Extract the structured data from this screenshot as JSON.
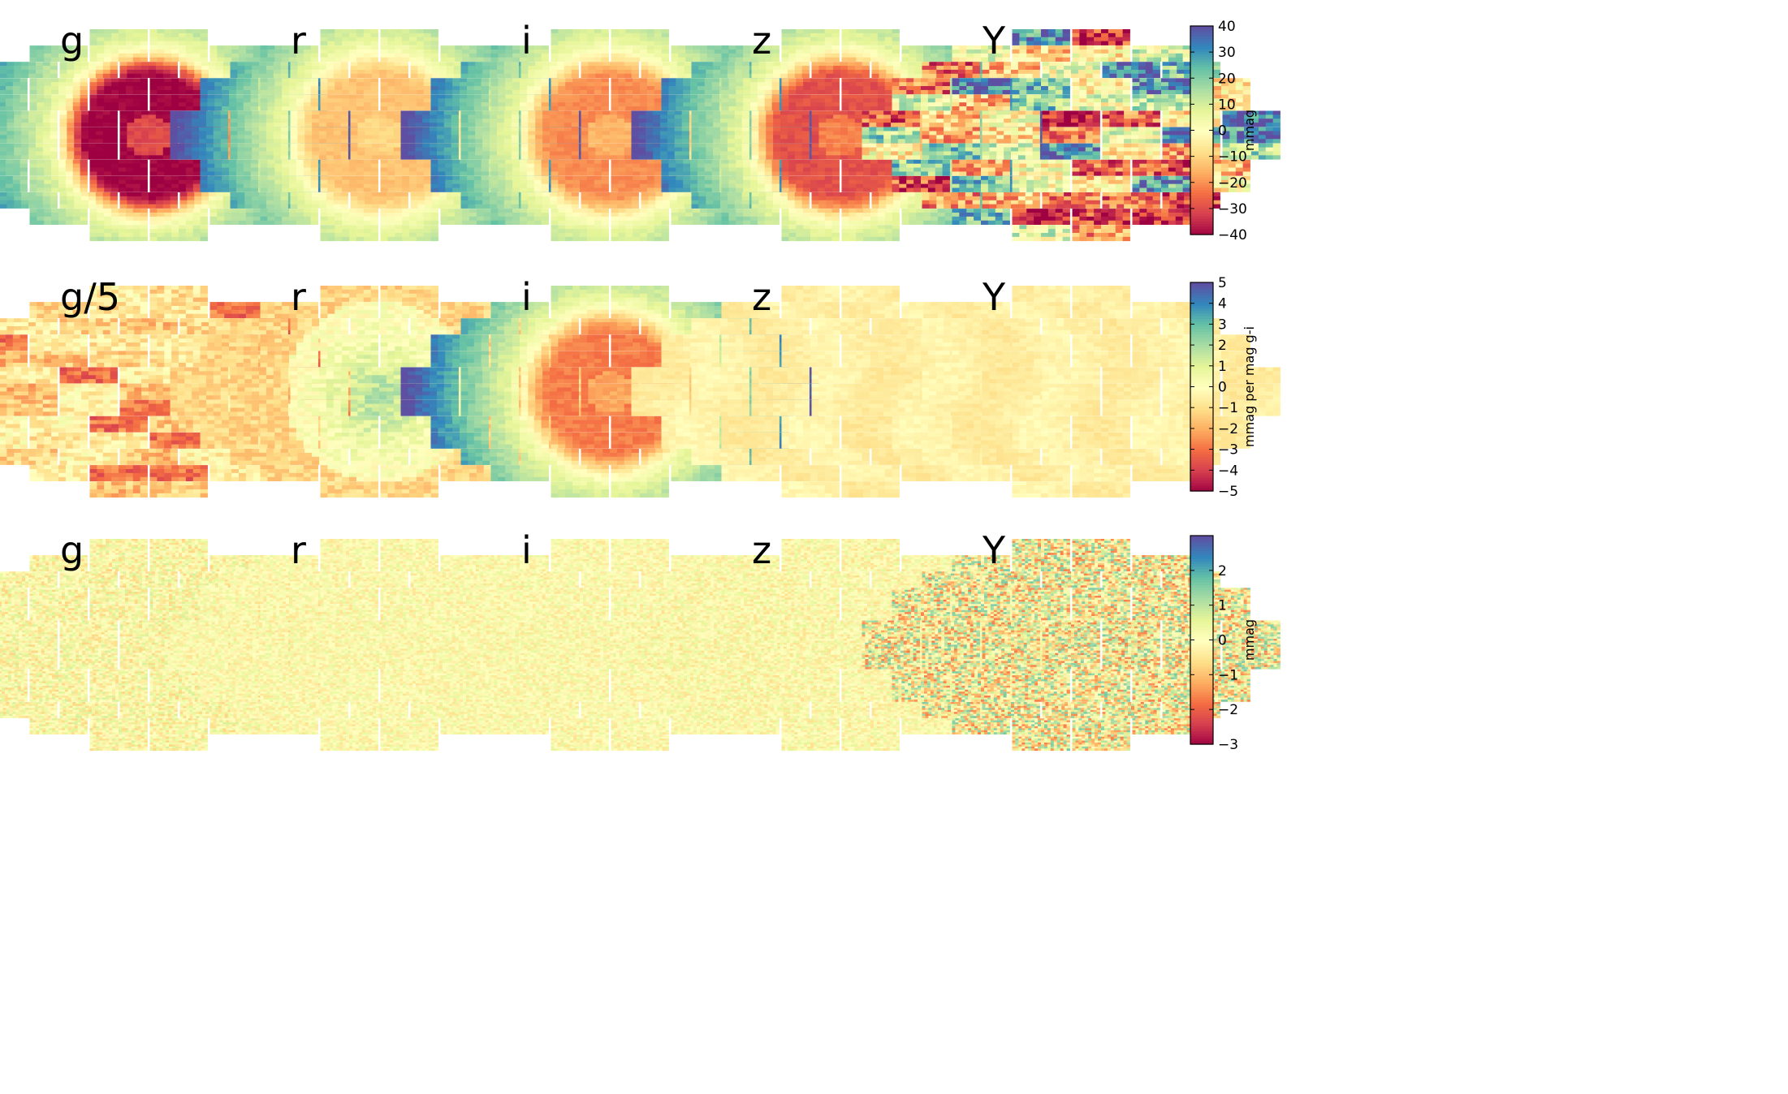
{
  "chart_data": {
    "type": "heatmap",
    "description_units": "focal-plane CCD maps; colour encodes value",
    "colormap": "Spectral",
    "rows": [
      {
        "id": "row1",
        "panels": [
          {
            "label": "g",
            "pattern": "ring",
            "strength": -1.0,
            "noise": 0.06
          },
          {
            "label": "r",
            "pattern": "ring",
            "strength": -0.32,
            "noise": 0.05
          },
          {
            "label": "i",
            "pattern": "ring",
            "strength": -0.5,
            "noise": 0.05
          },
          {
            "label": "z",
            "pattern": "ring",
            "strength": -0.72,
            "noise": 0.06
          },
          {
            "label": "Y",
            "pattern": "patchy",
            "strength": 0.9,
            "noise": 0.35
          }
        ],
        "colorbar": {
          "label": "mmag",
          "min": -40,
          "max": 40,
          "ticks": [
            "−40",
            "−30",
            "−20",
            "−10",
            "0",
            "10",
            "20",
            "30",
            "40"
          ]
        }
      },
      {
        "id": "row2",
        "panels": [
          {
            "label": "g/5",
            "pattern": "warm",
            "strength": -0.3,
            "noise": 0.18
          },
          {
            "label": "r",
            "pattern": "blob",
            "strength": 0.35,
            "noise": 0.12
          },
          {
            "label": "i",
            "pattern": "ring",
            "strength": -0.55,
            "noise": 0.06
          },
          {
            "label": "z",
            "pattern": "flat",
            "strength": -0.1,
            "noise": 0.05
          },
          {
            "label": "Y",
            "pattern": "flat",
            "strength": -0.1,
            "noise": 0.05
          }
        ],
        "colorbar": {
          "label": "mmag per mag g-i",
          "min": -5,
          "max": 5,
          "ticks": [
            "−5",
            "−4",
            "−3",
            "−2",
            "−1",
            "0",
            "1",
            "2",
            "3",
            "4",
            "5"
          ]
        }
      },
      {
        "id": "row3",
        "panels": [
          {
            "label": "g",
            "pattern": "noise",
            "strength": 0.25,
            "noise": 0.25
          },
          {
            "label": "r",
            "pattern": "noise",
            "strength": 0.15,
            "noise": 0.18
          },
          {
            "label": "i",
            "pattern": "noise",
            "strength": 0.15,
            "noise": 0.18
          },
          {
            "label": "z",
            "pattern": "noise",
            "strength": 0.2,
            "noise": 0.2
          },
          {
            "label": "Y",
            "pattern": "noise",
            "strength": 0.5,
            "noise": 0.55
          }
        ],
        "colorbar": {
          "label": "mmag",
          "min": -3,
          "max": 3,
          "ticks": [
            "−3",
            "−2",
            "−1",
            "0",
            "1",
            "2"
          ]
        }
      }
    ],
    "ccd_layout": [
      {
        "y": 0,
        "xs": [
          -1,
          1
        ]
      },
      {
        "y": 1,
        "xs": [
          -3,
          -1,
          1,
          3
        ]
      },
      {
        "y": 2,
        "xs": [
          -4,
          -2,
          0,
          2,
          4
        ]
      },
      {
        "y": 3,
        "xs": [
          -5,
          -3,
          -1,
          1,
          3,
          5
        ]
      },
      {
        "y": 4,
        "xs": [
          -5,
          -3,
          -1,
          1,
          3,
          5
        ]
      },
      {
        "y": 5,
        "xs": [
          -6,
          -4,
          -2,
          0,
          2,
          4,
          6
        ]
      },
      {
        "y": 6,
        "xs": [
          -6,
          -4,
          -2,
          0,
          2,
          4,
          6
        ]
      },
      {
        "y": 7,
        "xs": [
          -6,
          -4,
          -2,
          0,
          2,
          4,
          6
        ]
      },
      {
        "y": 8,
        "xs": [
          -5,
          -3,
          -1,
          1,
          3,
          5
        ]
      },
      {
        "y": 9,
        "xs": [
          -5,
          -3,
          -1,
          1,
          3,
          5
        ]
      },
      {
        "y": 10,
        "xs": [
          -4,
          -2,
          0,
          2,
          4
        ]
      },
      {
        "y": 11,
        "xs": [
          -3,
          -1,
          1,
          3
        ]
      },
      {
        "y": 12,
        "xs": [
          -1,
          1
        ]
      }
    ]
  }
}
